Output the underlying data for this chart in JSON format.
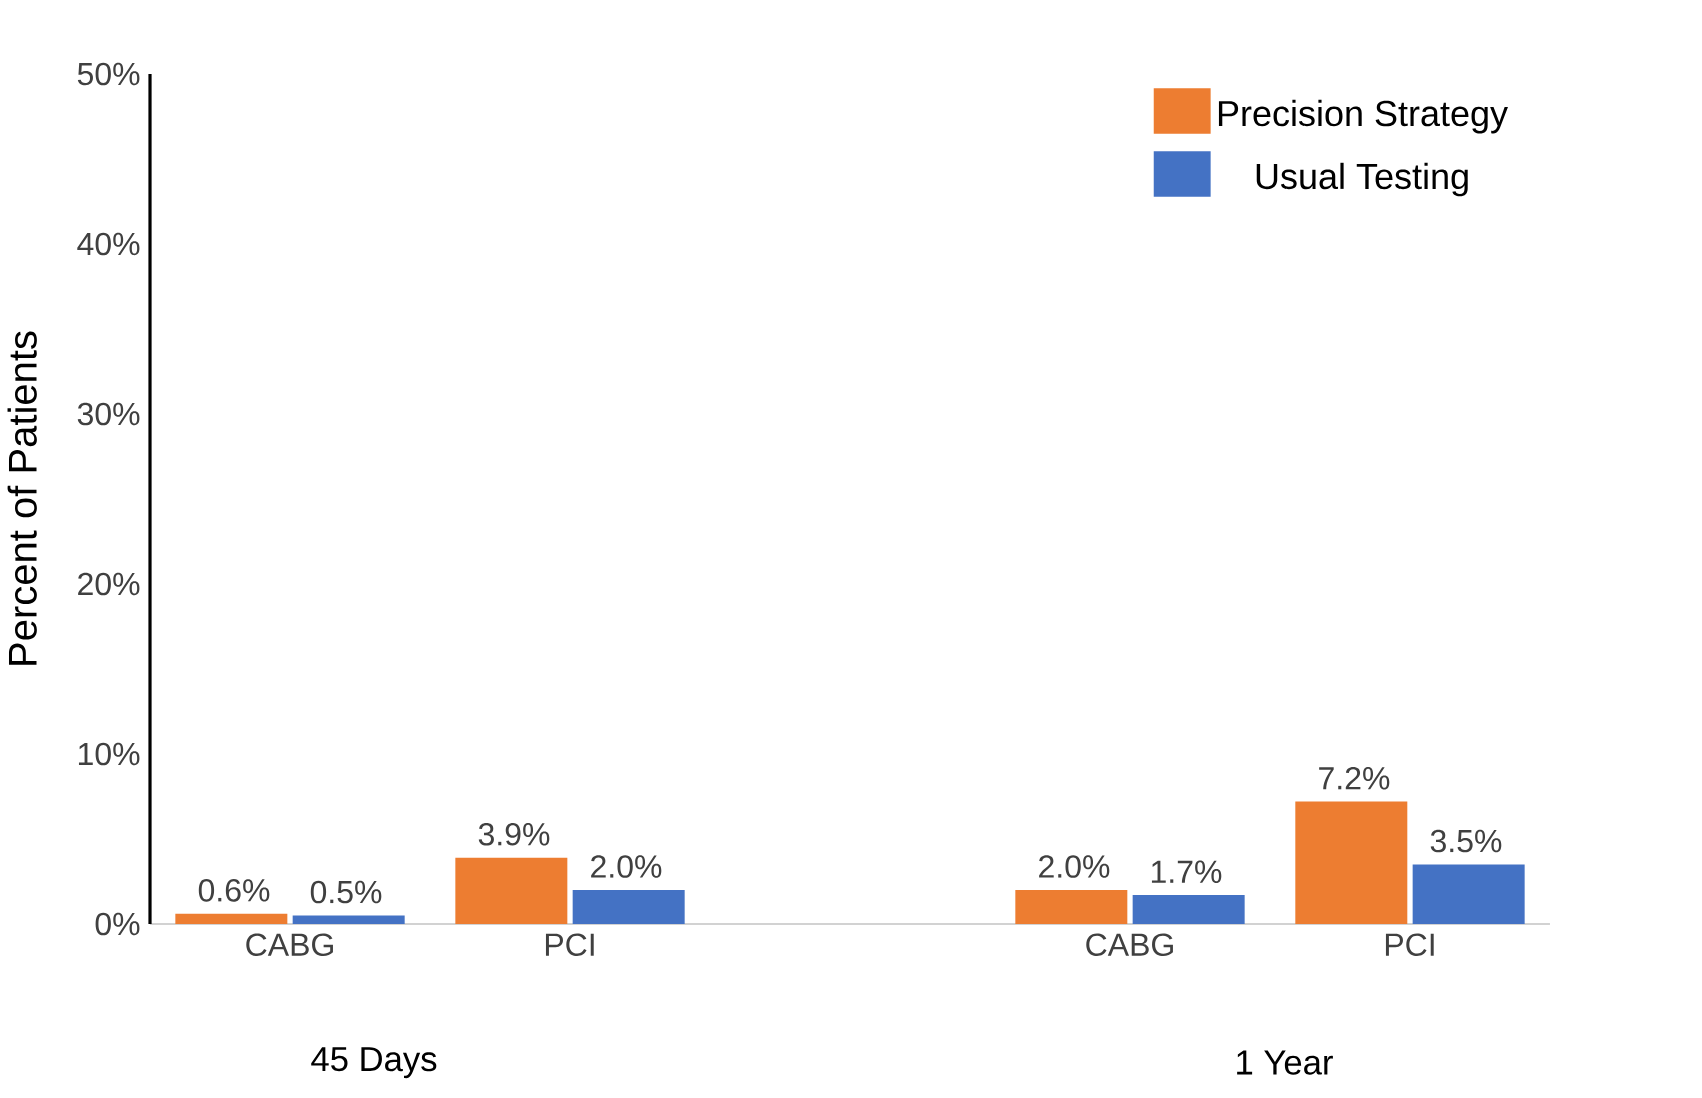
{
  "chart_data": {
    "type": "bar",
    "ylabel": "Percent of Patients",
    "categories": [
      "CABG",
      "PCI",
      null,
      "CABG",
      "PCI"
    ],
    "series": [
      {
        "name": "Precision Strategy",
        "color": "#ed7d31",
        "values": [
          0.6,
          3.9,
          null,
          2.0,
          7.2
        ],
        "value_labels": [
          "0.6%",
          "3.9%",
          null,
          "2.0%",
          "7.2%"
        ]
      },
      {
        "name": "Usual Testing",
        "color": "#4472c4",
        "values": [
          0.5,
          2.0,
          null,
          1.7,
          3.5
        ],
        "value_labels": [
          "0.5%",
          "2.0%",
          null,
          "1.7%",
          "3.5%"
        ]
      }
    ],
    "ylim": [
      0,
      50
    ],
    "yticks": [
      {
        "value": 0,
        "label": "0%"
      },
      {
        "value": 10,
        "label": "10%"
      },
      {
        "value": 20,
        "label": "20%"
      },
      {
        "value": 30,
        "label": "30%"
      },
      {
        "value": 40,
        "label": "40%"
      },
      {
        "value": 50,
        "label": "50%"
      }
    ],
    "annotations": [
      "45 Days",
      "1 Year"
    ],
    "legend": "top right",
    "grid": false
  }
}
